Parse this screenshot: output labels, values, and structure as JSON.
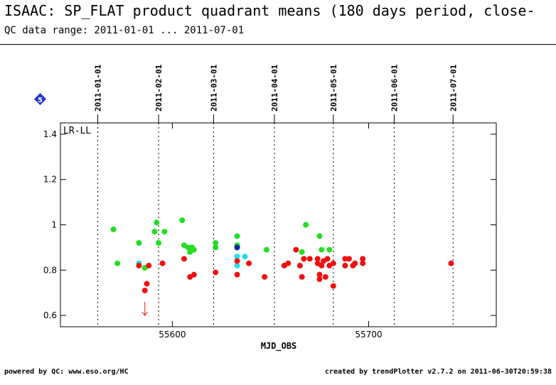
{
  "title": "ISAAC: SP_FLAT product quadrant means (180 days period, close-",
  "subtitle": "QC data range: 2011-01-01 ... 2011-07-01",
  "badge": "5",
  "footer": {
    "left": "powered by QC: www.eso.org/HC",
    "right": "created by trendPlotter v2.7.2 on 2011-06-30T20:59:38"
  },
  "colors": {
    "green": "#22dd22",
    "red": "#ee1111",
    "cyan": "#22ddee",
    "blue": "#1122aa",
    "badge": "#2233cc"
  },
  "chart_data": {
    "type": "scatter",
    "xlabel": "MJD_OBS",
    "ylabel": "",
    "xlim": [
      55543,
      55765
    ],
    "ylim": [
      0.55,
      1.45
    ],
    "x_ticks": [
      55600,
      55700
    ],
    "y_ticks": [
      0.6,
      0.8,
      1,
      1.2,
      1.4
    ],
    "y_tick_labels": [
      "0.6",
      "0.8",
      "1",
      "1.2",
      "1.4"
    ],
    "panel_label": "LR-LL",
    "date_markers": [
      {
        "label": "2011-01-01",
        "mjd": 55562
      },
      {
        "label": "2011-02-01",
        "mjd": 55593
      },
      {
        "label": "2011-03-01",
        "mjd": 55621
      },
      {
        "label": "2011-04-01",
        "mjd": 55652
      },
      {
        "label": "2011-05-01",
        "mjd": 55682
      },
      {
        "label": "2011-06-01",
        "mjd": 55713
      },
      {
        "label": "2011-07-01",
        "mjd": 55743
      }
    ],
    "series": [
      {
        "color": "green",
        "points": [
          [
            55570,
            0.98
          ],
          [
            55572,
            0.83
          ],
          [
            55583,
            0.92
          ],
          [
            55586,
            0.81
          ],
          [
            55591,
            0.97
          ],
          [
            55592,
            1.01
          ],
          [
            55593,
            0.92
          ],
          [
            55596,
            0.97
          ],
          [
            55605,
            1.02
          ],
          [
            55606,
            0.91
          ],
          [
            55608,
            0.9
          ],
          [
            55609,
            0.88
          ],
          [
            55610,
            0.9
          ],
          [
            55611,
            0.89
          ],
          [
            55622,
            0.92
          ],
          [
            55622,
            0.9
          ],
          [
            55633,
            0.95
          ],
          [
            55633,
            0.91
          ],
          [
            55648,
            0.89
          ],
          [
            55666,
            0.88
          ],
          [
            55668,
            1.0
          ],
          [
            55675,
            0.95
          ],
          [
            55676,
            0.89
          ],
          [
            55680,
            0.89
          ]
        ]
      },
      {
        "color": "cyan",
        "points": [
          [
            55583,
            0.83
          ],
          [
            55633,
            0.86
          ],
          [
            55633,
            0.82
          ],
          [
            55637,
            0.86
          ]
        ]
      },
      {
        "color": "blue",
        "points": [
          [
            55633,
            0.9
          ]
        ]
      },
      {
        "color": "red",
        "points": [
          [
            55583,
            0.82
          ],
          [
            55586,
            0.71
          ],
          [
            55587,
            0.74
          ],
          [
            55588,
            0.82
          ],
          [
            55595,
            0.83
          ],
          [
            55606,
            0.85
          ],
          [
            55609,
            0.77
          ],
          [
            55611,
            0.78
          ],
          [
            55622,
            0.79
          ],
          [
            55633,
            0.84
          ],
          [
            55633,
            0.78
          ],
          [
            55639,
            0.83
          ],
          [
            55647,
            0.77
          ],
          [
            55657,
            0.82
          ],
          [
            55659,
            0.83
          ],
          [
            55663,
            0.89
          ],
          [
            55665,
            0.82
          ],
          [
            55666,
            0.77
          ],
          [
            55667,
            0.85
          ],
          [
            55670,
            0.85
          ],
          [
            55674,
            0.85
          ],
          [
            55674,
            0.83
          ],
          [
            55675,
            0.78
          ],
          [
            55675,
            0.76
          ],
          [
            55676,
            0.82
          ],
          [
            55677,
            0.84
          ],
          [
            55678,
            0.77
          ],
          [
            55679,
            0.85
          ],
          [
            55680,
            0.82
          ],
          [
            55682,
            0.83
          ],
          [
            55682,
            0.73
          ],
          [
            55688,
            0.82
          ],
          [
            55688,
            0.85
          ],
          [
            55690,
            0.85
          ],
          [
            55692,
            0.82
          ],
          [
            55693,
            0.83
          ],
          [
            55697,
            0.83
          ],
          [
            55697,
            0.85
          ],
          [
            55742,
            0.83
          ]
        ]
      }
    ],
    "limit_markers": [
      {
        "x": 55586,
        "y": 0.62,
        "direction": "down",
        "color": "red"
      }
    ]
  }
}
